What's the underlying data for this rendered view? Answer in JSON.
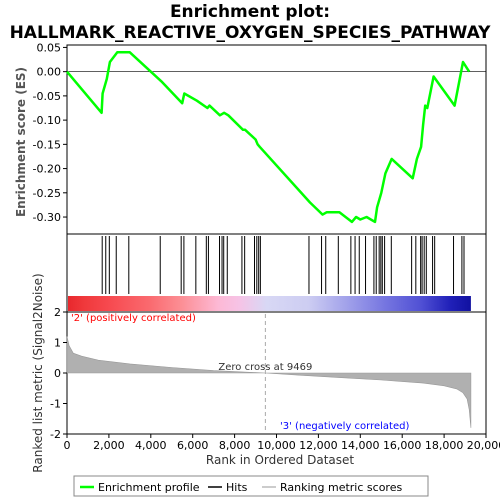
{
  "chart_data": {
    "type": "line",
    "title_lines": [
      "Enrichment plot:",
      "HALLMARK_REACTIVE_OXYGEN_SPECIES_PATHWAY"
    ],
    "top_panel": {
      "ylabel": "Enrichment score (ES)",
      "ylim": [
        -0.335,
        0.055
      ],
      "yticks": [
        0.05,
        0.0,
        -0.05,
        -0.1,
        -0.15,
        -0.2,
        -0.25,
        -0.3
      ],
      "ytick_labels": [
        "0.05",
        "0.00",
        "-0.05",
        "-0.10",
        "-0.15",
        "-0.20",
        "-0.25",
        "-0.30"
      ],
      "series": {
        "name": "Enrichment profile",
        "color": "#00ff00",
        "x": [
          0,
          1650,
          1700,
          1900,
          2050,
          2400,
          3000,
          4500,
          5500,
          5600,
          6200,
          6700,
          6800,
          7300,
          7500,
          7700,
          8400,
          8500,
          9000,
          9100,
          9200,
          11600,
          12200,
          12400,
          13000,
          13600,
          13800,
          14000,
          14300,
          14700,
          14800,
          15000,
          15200,
          15500,
          16500,
          16700,
          16900,
          17000,
          17100,
          17200,
          17500,
          18500,
          18900,
          19200
        ],
        "y": [
          0.0,
          -0.085,
          -0.045,
          -0.015,
          0.02,
          0.04,
          0.04,
          -0.02,
          -0.065,
          -0.045,
          -0.06,
          -0.075,
          -0.07,
          -0.09,
          -0.085,
          -0.09,
          -0.12,
          -0.12,
          -0.14,
          -0.15,
          -0.155,
          -0.27,
          -0.295,
          -0.29,
          -0.29,
          -0.31,
          -0.3,
          -0.305,
          -0.3,
          -0.31,
          -0.28,
          -0.25,
          -0.21,
          -0.18,
          -0.22,
          -0.18,
          -0.155,
          -0.11,
          -0.07,
          -0.075,
          -0.01,
          -0.07,
          0.02,
          0.0
        ]
      },
      "flat_segments": [
        [
          [
            1650,
            -0.085
          ],
          [
            1700,
            -0.045
          ]
        ],
        [
          [
            2050,
            0.02
          ],
          [
            2400,
            0.04
          ]
        ]
      ]
    },
    "hits": [
      1680,
      1850,
      2020,
      2350,
      2950,
      4450,
      5450,
      5580,
      6150,
      6650,
      6750,
      7280,
      7400,
      7480,
      7650,
      8350,
      8480,
      8950,
      9060,
      9150,
      9230,
      11550,
      12150,
      12350,
      12950,
      13550,
      13750,
      13950,
      14250,
      14650,
      14760,
      14900,
      14980,
      15050,
      15160,
      15480,
      16450,
      16650,
      16880,
      16950,
      17050,
      17150,
      17450,
      17550,
      18450,
      18850,
      18950
    ],
    "ranked_panel": {
      "ylabel": "Ranked list metric (Signal2Noise)",
      "ylim": [
        -2,
        2
      ],
      "yticks": [
        2,
        1,
        0,
        -1,
        -2
      ],
      "ytick_labels": [
        "2",
        "1",
        "0",
        "-1",
        "-2"
      ],
      "profile_x": [
        0,
        100,
        300,
        700,
        1500,
        3000,
        5000,
        7000,
        9469,
        11000,
        13000,
        15000,
        17000,
        18000,
        18600,
        18900,
        19100,
        19200,
        19280
      ],
      "profile_y": [
        1.2,
        0.9,
        0.65,
        0.55,
        0.42,
        0.3,
        0.18,
        0.08,
        0.0,
        -0.07,
        -0.15,
        -0.23,
        -0.33,
        -0.42,
        -0.52,
        -0.65,
        -0.85,
        -1.2,
        -1.8
      ],
      "zero_cross_x": 9469,
      "zero_cross_label": "Zero cross at 9469",
      "positive_label": "'2' (positively correlated)",
      "negative_label": "'3' (negatively correlated)",
      "positive_color": "#ff0000",
      "negative_color": "#0000ff",
      "fill_color": "#b0b0b0"
    },
    "x_axis": {
      "xlabel": "Rank in Ordered Dataset",
      "xlim": [
        0,
        20000
      ],
      "data_max": 19280,
      "xticks": [
        0,
        2000,
        4000,
        6000,
        8000,
        10000,
        12000,
        14000,
        16000,
        18000,
        20000
      ],
      "xtick_labels": [
        "0",
        "2,000",
        "4,000",
        "6,000",
        "8,000",
        "10,000",
        "12,000",
        "14,000",
        "16,000",
        "18,000",
        "20,000"
      ]
    },
    "legend": {
      "placement": "bottom",
      "entries": [
        "Enrichment profile",
        "Hits",
        "Ranking metric scores"
      ]
    },
    "colorbar_stops": [
      {
        "x": 0,
        "color": "#e8282d"
      },
      {
        "x": 800,
        "color": "#f0393c"
      },
      {
        "x": 2000,
        "color": "#f74a50"
      },
      {
        "x": 3900,
        "color": "#fa6a6f"
      },
      {
        "x": 5400,
        "color": "#fc8e94"
      },
      {
        "x": 7200,
        "color": "#fdb9d5"
      },
      {
        "x": 8200,
        "color": "#f6c3e6"
      },
      {
        "x": 9500,
        "color": "#d8d8f5"
      },
      {
        "x": 11500,
        "color": "#cdcdf2"
      },
      {
        "x": 13400,
        "color": "#a0a0ea"
      },
      {
        "x": 15200,
        "color": "#7575e0"
      },
      {
        "x": 16900,
        "color": "#5050d4"
      },
      {
        "x": 18300,
        "color": "#2020b8"
      },
      {
        "x": 19280,
        "color": "#1010a0"
      }
    ]
  }
}
